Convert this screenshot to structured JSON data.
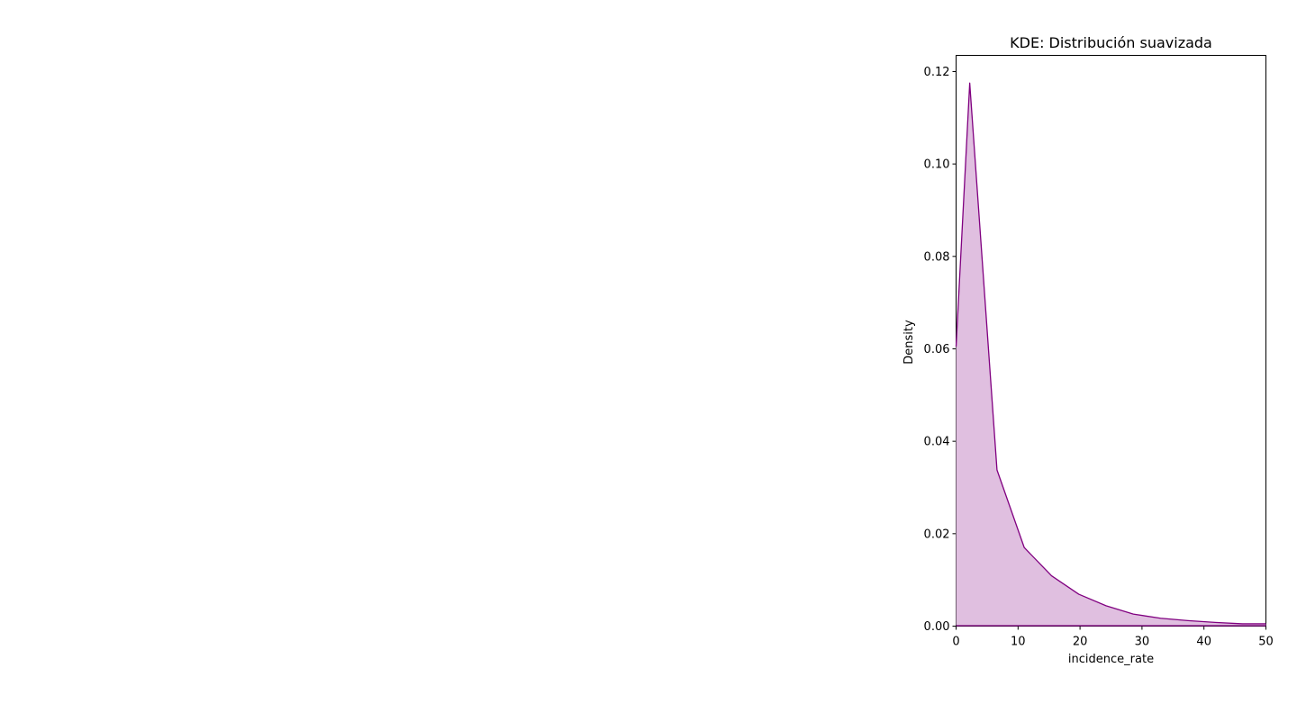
{
  "chart_data": {
    "type": "area",
    "title": "KDE: Distribución suavizada",
    "xlabel": "incidence_rate",
    "ylabel": "Density",
    "xlim": [
      0,
      50
    ],
    "ylim": [
      0,
      0.1235
    ],
    "xticks": [
      0,
      10,
      20,
      30,
      40,
      50
    ],
    "yticks": [
      0.0,
      0.02,
      0.04,
      0.06,
      0.08,
      0.1,
      0.12
    ],
    "ytick_labels": [
      "0.00",
      "0.02",
      "0.04",
      "0.06",
      "0.08",
      "0.10",
      "0.12"
    ],
    "grid": false,
    "line_color": "#800080",
    "fill_color": "#e0bfe0",
    "series": [
      {
        "x": [
          0,
          2.2,
          6.6,
          11.0,
          15.4,
          19.8,
          24.2,
          28.6,
          33.0,
          37.4,
          41.8,
          46.2,
          50
        ],
        "y": [
          0.0605,
          0.1175,
          0.0338,
          0.017,
          0.0109,
          0.0069,
          0.0044,
          0.0026,
          0.0017,
          0.0012,
          0.0008,
          0.0005,
          0.0005
        ]
      }
    ]
  }
}
